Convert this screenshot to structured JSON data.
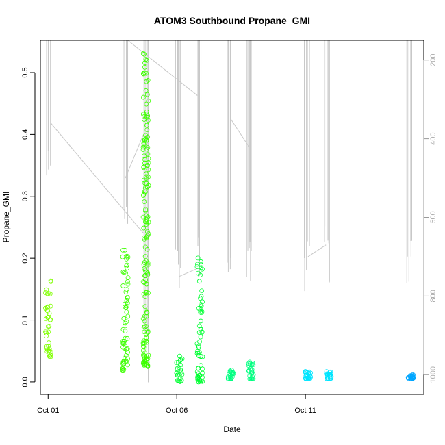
{
  "chart_data": {
    "type": "scatter",
    "title": "ATOM3 Southbound Propane_GMI",
    "xlabel": "Date",
    "ylabel": "Propane_GMI",
    "x_ticks": [
      "Oct 01",
      "Oct 06",
      "Oct 11"
    ],
    "y_ticks": [
      "0.0",
      "0.1",
      "0.2",
      "0.3",
      "0.4",
      "0.5"
    ],
    "y2_ticks": [
      "200",
      "400",
      "600",
      "800",
      "1000"
    ],
    "xlim": [
      -0.3,
      14.6
    ],
    "ylim": [
      -0.02,
      0.552
    ],
    "y2lim": [
      1050,
      150
    ],
    "y2_reversed": true,
    "grid": false,
    "point_colors": [
      "#80ff00",
      "#3dff00",
      "#00ff33",
      "#00ff80",
      "#00ffcc",
      "#00e5ff",
      "#00a6ff"
    ],
    "pressure_color": "#c8c8c8",
    "clusters": [
      {
        "x": 0.0,
        "ymin": 0.04,
        "ymax": 0.165,
        "color": "#80ff00"
      },
      {
        "x": 3.0,
        "ymin": 0.018,
        "ymax": 0.215,
        "color": "#3dff00"
      },
      {
        "x": 3.8,
        "ymin": 0.025,
        "ymax": 0.535,
        "color": "#3dff00"
      },
      {
        "x": 5.1,
        "ymin": 0.0,
        "ymax": 0.042,
        "color": "#00ff33"
      },
      {
        "x": 5.9,
        "ymin": 0.0,
        "ymax": 0.21,
        "color": "#00ff33"
      },
      {
        "x": 7.1,
        "ymin": 0.005,
        "ymax": 0.02,
        "color": "#00ff80"
      },
      {
        "x": 7.9,
        "ymin": 0.005,
        "ymax": 0.033,
        "color": "#00ff80"
      },
      {
        "x": 10.1,
        "ymin": 0.005,
        "ymax": 0.018,
        "color": "#00e5ff"
      },
      {
        "x": 10.9,
        "ymin": 0.005,
        "ymax": 0.018,
        "color": "#00e5ff"
      },
      {
        "x": 14.1,
        "ymin": 0.005,
        "ymax": 0.012,
        "color": "#00a6ff"
      }
    ],
    "pressure_profiles": [
      {
        "x": 0.05,
        "pmin": 150,
        "pmax": 500
      },
      {
        "x": 3.0,
        "pmin": 150,
        "pmax": 640
      },
      {
        "x": 3.8,
        "pmin": 150,
        "pmax": 1040
      },
      {
        "x": 5.05,
        "pmin": 150,
        "pmax": 800
      },
      {
        "x": 5.85,
        "pmin": 150,
        "pmax": 760
      },
      {
        "x": 7.0,
        "pmin": 150,
        "pmax": 790
      },
      {
        "x": 7.8,
        "pmin": 150,
        "pmax": 780
      },
      {
        "x": 10.05,
        "pmin": 150,
        "pmax": 800
      },
      {
        "x": 10.85,
        "pmin": 150,
        "pmax": 780
      },
      {
        "x": 14.05,
        "pmin": 150,
        "pmax": 780
      }
    ],
    "pressure_links": [
      [
        0.1,
        360,
        3.7,
        640
      ],
      [
        3.0,
        500,
        3.7,
        390
      ],
      [
        3.1,
        150,
        5.8,
        290
      ],
      [
        5.1,
        750,
        5.8,
        730
      ],
      [
        7.1,
        350,
        7.8,
        420
      ],
      [
        10.1,
        700,
        10.8,
        670
      ]
    ]
  }
}
